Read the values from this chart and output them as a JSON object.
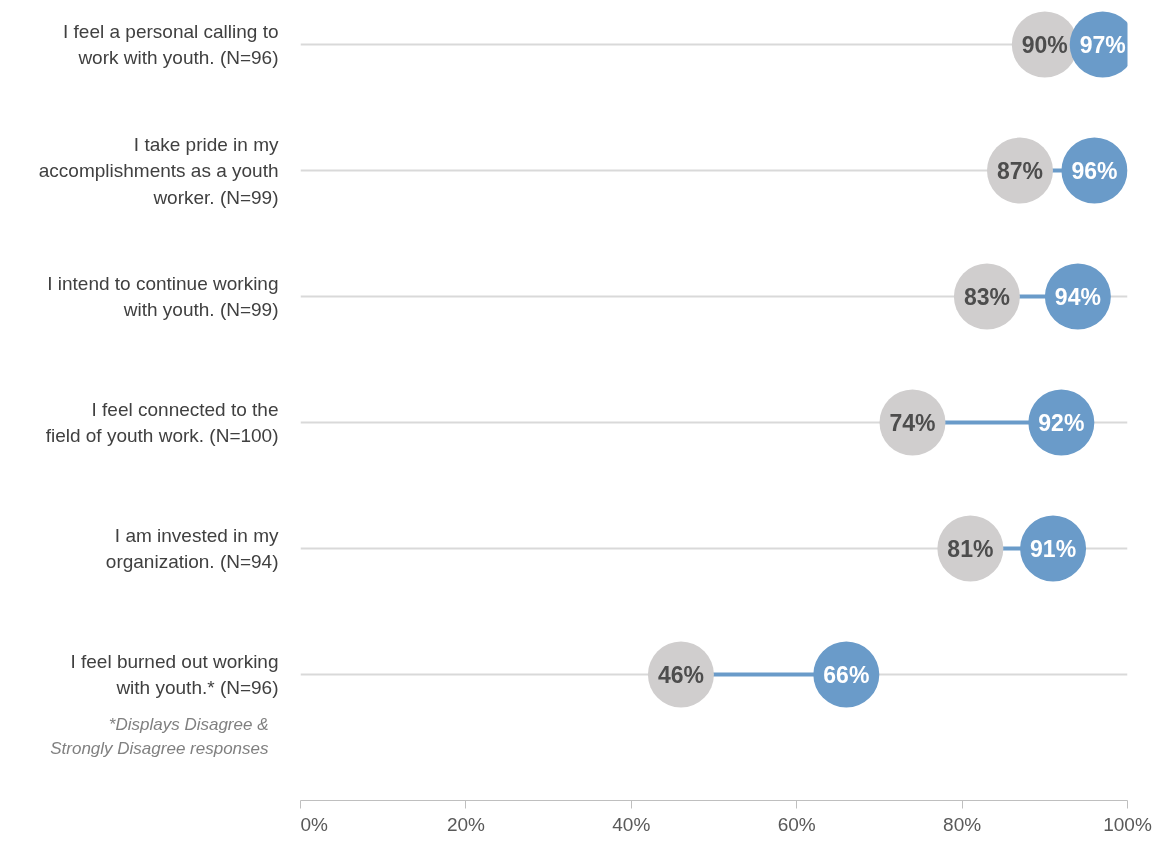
{
  "chart_data": {
    "type": "scatter",
    "orientation": "horizontal",
    "categories": [
      "I feel a personal calling to work with youth. (N=96)",
      "I take pride in my accomplishments as a youth worker. (N=99)",
      "I intend to continue working with youth. (N=99)",
      "I feel connected to the field of youth work. (N=100)",
      "I am invested in my organization. (N=94)",
      "I feel burned out working with youth.* (N=96)"
    ],
    "series": [
      {
        "color": "#d0cece",
        "values": [
          90,
          87,
          83,
          74,
          81,
          46
        ],
        "value_labels": [
          "90%",
          "87%",
          "83%",
          "74%",
          "81%",
          "46%"
        ]
      },
      {
        "color": "#6a9bc9",
        "values": [
          97,
          96,
          94,
          92,
          91,
          66
        ],
        "value_labels": [
          "97%",
          "96%",
          "94%",
          "92%",
          "91%",
          "66%"
        ]
      }
    ],
    "xlim": [
      0,
      100
    ],
    "xticks": [
      {
        "value": 0,
        "label": "0%"
      },
      {
        "value": 20,
        "label": "20%"
      },
      {
        "value": 40,
        "label": "40%"
      },
      {
        "value": 60,
        "label": "60%"
      },
      {
        "value": 80,
        "label": "80%"
      },
      {
        "value": 100,
        "label": "100%"
      }
    ],
    "grid": "y",
    "marker": "circle",
    "annotations": [
      "*Displays Disagree & Strongly Disagree responses"
    ]
  }
}
